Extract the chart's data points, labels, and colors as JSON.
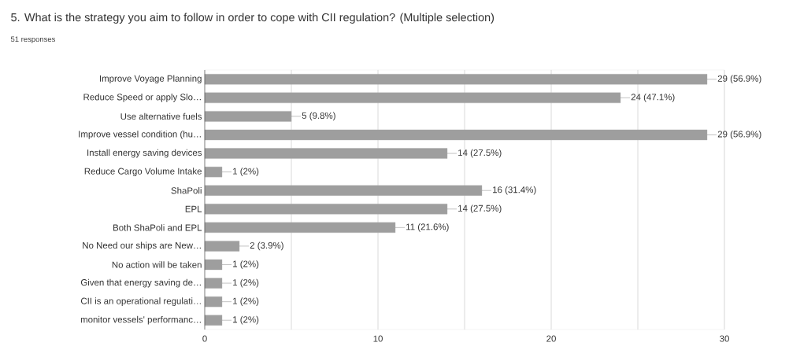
{
  "chart_data": {
    "type": "bar",
    "orientation": "horizontal",
    "title": "5. What is the strategy you aim to follow in order to cope with CII regulation?  (Multiple selection)",
    "subtitle": "51 responses",
    "categories": [
      "Improve Voyage Planning",
      "Reduce Speed or apply Slo…",
      "Use alternative fuels",
      "Improve vessel condition (hu…",
      "Install energy saving devices",
      "Reduce Cargo Volume Intake",
      "ShaPoli",
      "EPL",
      "Both ShaPoli and EPL",
      "No Need our ships are New…",
      "No action will be taken",
      "Given that energy saving de…",
      "CII is an operational regulati…",
      "monitor vessels' performanc…"
    ],
    "values": [
      29,
      24,
      5,
      29,
      14,
      1,
      16,
      14,
      11,
      2,
      1,
      1,
      1,
      1
    ],
    "value_labels": [
      "29 (56.9%)",
      "24 (47.1%)",
      "5 (9.8%)",
      "29 (56.9%)",
      "14 (27.5%)",
      "1 (2%)",
      "16 (31.4%)",
      "14 (27.5%)",
      "11 (21.6%)",
      "2 (3.9%)",
      "1 (2%)",
      "1 (2%)",
      "1 (2%)",
      "1 (2%)"
    ],
    "color": "#9e9e9e",
    "xlim": [
      0,
      30
    ],
    "xticks": [
      0,
      {
        "value": 5,
        "label": null
      },
      10,
      {
        "value": 15,
        "label": null
      },
      20,
      {
        "value": 25,
        "label": null
      },
      30
    ],
    "grid": "x"
  }
}
